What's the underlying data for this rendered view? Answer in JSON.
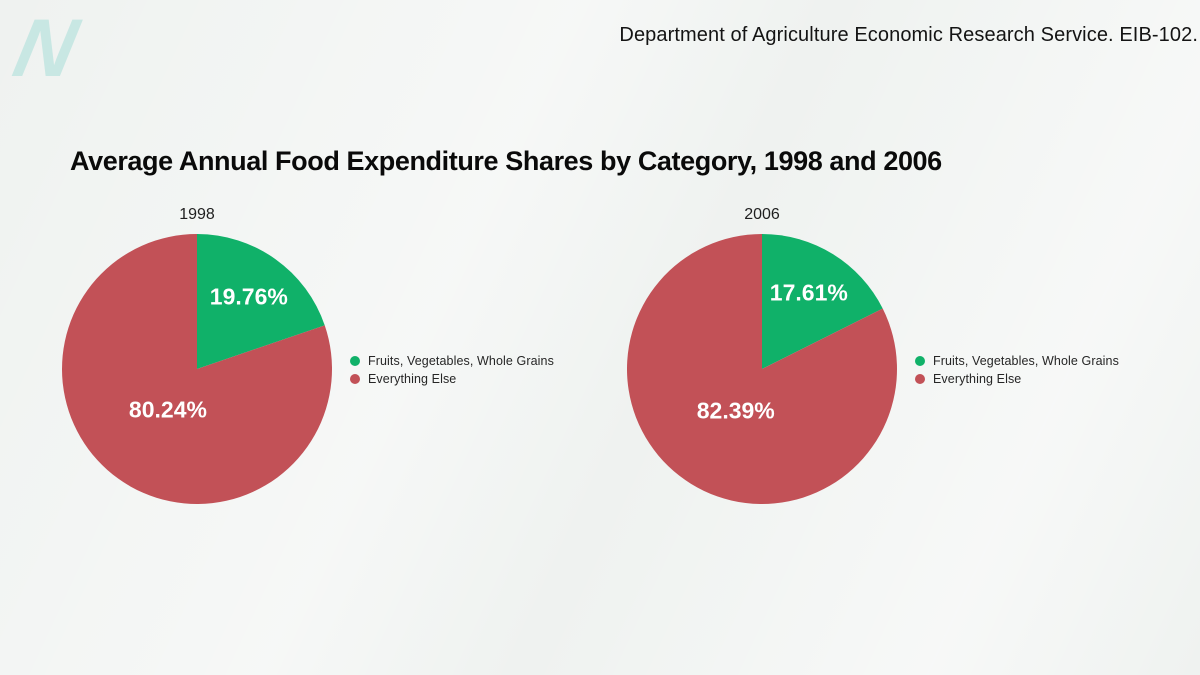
{
  "branding": {
    "logo_text": "N",
    "logo_color": "#c8e7e3"
  },
  "header": {
    "source_text": "Department of Agriculture Economic Research Service. EIB-102."
  },
  "main": {
    "title": "Average Annual Food Expenditure Shares by Category, 1998 and 2006"
  },
  "colors": {
    "background": "#eff2f0",
    "green": "#10b169",
    "red": "#c25157",
    "slice_label_text": "#ffffff"
  },
  "chart_data": [
    {
      "type": "pie",
      "title": "1998",
      "start_angle_deg": 0,
      "direction": "clockwise",
      "legend_position": "right",
      "slices": [
        {
          "label": "Fruits, Vegetables, Whole Grains",
          "value": 19.76,
          "display": "19.76%",
          "color": "#10b169"
        },
        {
          "label": "Everything Else",
          "value": 80.24,
          "display": "80.24%",
          "color": "#c25157"
        }
      ]
    },
    {
      "type": "pie",
      "title": "2006",
      "start_angle_deg": 0,
      "direction": "clockwise",
      "legend_position": "right",
      "slices": [
        {
          "label": "Fruits, Vegetables, Whole Grains",
          "value": 17.61,
          "display": "17.61%",
          "color": "#10b169"
        },
        {
          "label": "Everything Else",
          "value": 82.39,
          "display": "82.39%",
          "color": "#c25157"
        }
      ]
    }
  ]
}
